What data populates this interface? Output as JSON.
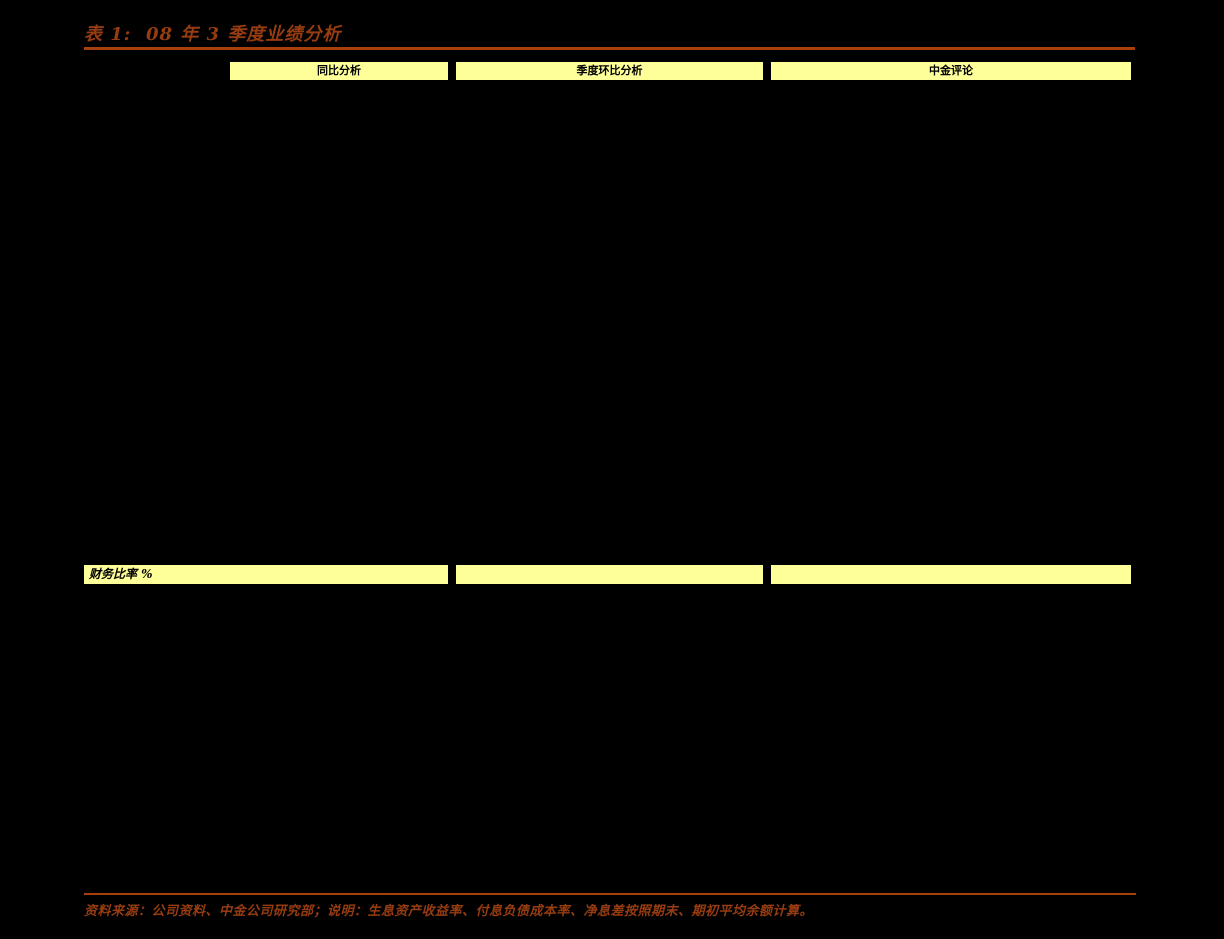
{
  "colors": {
    "bg": "#000000",
    "accent": "#a8400e",
    "title-text": "#963c10",
    "highlight": "#ffff99",
    "bar-text": "#000000"
  },
  "title": "表 1:  08 年 3 季度业绩分析",
  "table": {
    "header_row": {
      "col1": "同比分析",
      "col2": "季度环比分析",
      "col3": "中金评论"
    },
    "section_row": {
      "col1": "财务比率 %",
      "col2": "",
      "col3": ""
    }
  },
  "footer": {
    "source_note": "资料来源：公司资料、中金公司研究部；说明：生息资产收益率、付息负债成本率、净息差按照期末、期初平均余额计算。"
  }
}
